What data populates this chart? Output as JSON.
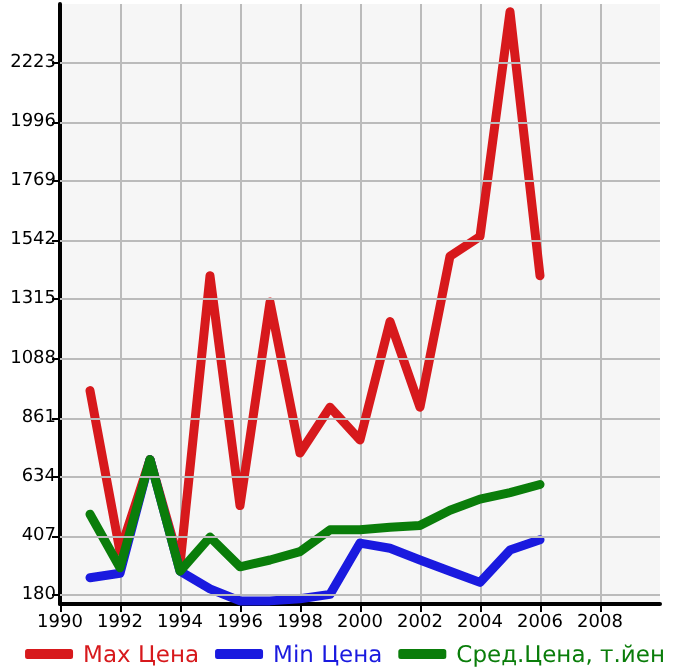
{
  "chart_data": {
    "type": "line",
    "x": [
      1991,
      1992,
      1993,
      1994,
      1995,
      1996,
      1997,
      1998,
      1999,
      2000,
      2001,
      2002,
      2003,
      2004,
      2005,
      2006
    ],
    "series": [
      {
        "name": "Max Цена",
        "color": "#d7191c",
        "values": [
          965,
          347,
          700,
          296,
          1406,
          523,
          1305,
          725,
          901,
          775,
          1230,
          901,
          1481,
          1557,
          2420,
          1406
        ]
      },
      {
        "name": "Min Цена",
        "color": "#1a1adf",
        "values": [
          246,
          263,
          700,
          271,
          203,
          157,
          157,
          165,
          182,
          379,
          359,
          314,
          271,
          228,
          352,
          392
        ]
      },
      {
        "name": "Сред.Цена, т.йен",
        "color": "#0a7d0a",
        "values": [
          490,
          284,
          700,
          271,
          402,
          288,
          314,
          346,
          430,
          430,
          440,
          447,
          505,
          548,
          573,
          604
        ]
      }
    ],
    "xlim": [
      1990,
      2010
    ],
    "xticks": [
      1990,
      1992,
      1994,
      1996,
      1998,
      2000,
      2002,
      2004,
      2006,
      2008
    ],
    "ylim": [
      145,
      2450
    ],
    "yticks": [
      180,
      407,
      634,
      861,
      1088,
      1315,
      1542,
      1769,
      1996,
      2223
    ],
    "grid": true,
    "legend": "bottom",
    "marker": "none",
    "line_style": "solid"
  }
}
